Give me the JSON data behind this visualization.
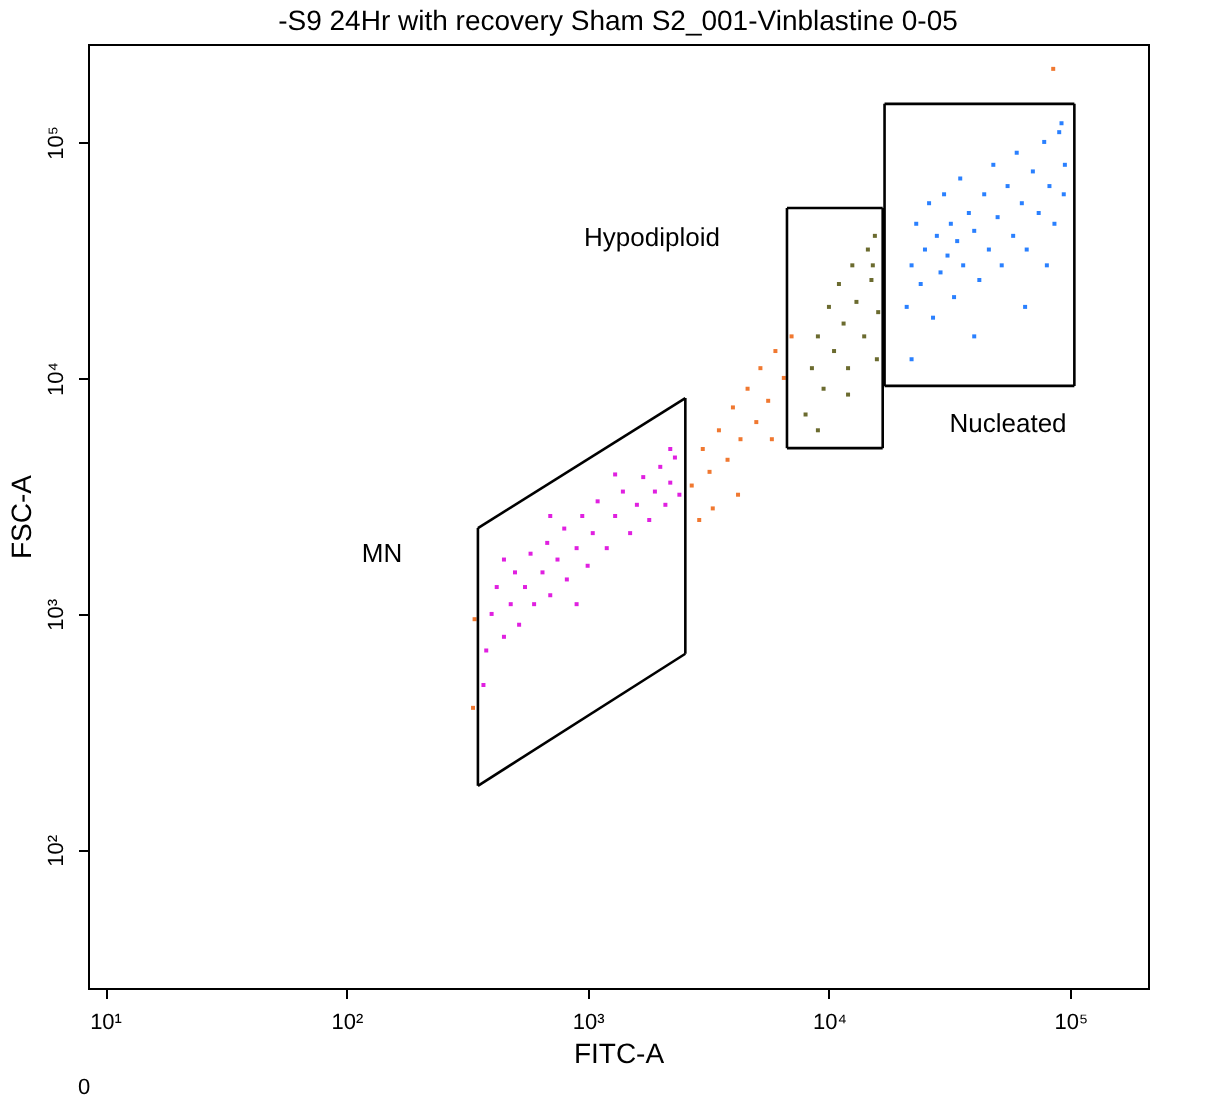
{
  "chart_data": {
    "type": "scatter",
    "title": "-S9 24Hr with recovery Sham S2_001-Vinblastine 0-05",
    "xlabel": "FITC-A",
    "ylabel": "FSC-A",
    "log": "xy",
    "xlim": [
      8.5,
      210000
    ],
    "ylim": [
      26,
      260000
    ],
    "xticks": [
      {
        "value": 10,
        "label": "10¹"
      },
      {
        "value": 100,
        "label": "10²"
      },
      {
        "value": 1000,
        "label": "10³"
      },
      {
        "value": 10000,
        "label": "10⁴"
      },
      {
        "value": 100000,
        "label": "10⁵"
      }
    ],
    "yticks": [
      {
        "value": 100,
        "label": "10²"
      },
      {
        "value": 1000,
        "label": "10³"
      },
      {
        "value": 10000,
        "label": "10⁴"
      },
      {
        "value": 100000,
        "label": "10⁵"
      }
    ],
    "grid": false,
    "marker": "square",
    "annotations": [
      "MN",
      "Hypodiploid",
      "Nucleated",
      "0"
    ],
    "series": [
      {
        "color": "#e020e0",
        "x": [
          380,
          400,
          420,
          450,
          480,
          500,
          520,
          550,
          580,
          600,
          650,
          680,
          700,
          750,
          800,
          820,
          900,
          950,
          1000,
          1050,
          1100,
          1200,
          1300,
          1400,
          1500,
          1600,
          1700,
          1800,
          1900,
          2000,
          2100,
          2200,
          2300,
          2400,
          370,
          450,
          700,
          1300,
          2200,
          900
        ],
        "values": [
          700,
          1000,
          1300,
          800,
          1100,
          1500,
          900,
          1300,
          1800,
          1100,
          1500,
          2000,
          1200,
          1700,
          2300,
          1400,
          1900,
          2600,
          1600,
          2200,
          3000,
          1900,
          2600,
          3300,
          2200,
          2900,
          3800,
          2500,
          3300,
          4200,
          2900,
          3600,
          4600,
          3200,
          500,
          1700,
          2600,
          3900,
          5000,
          1100
        ]
      },
      {
        "color": "#f07830",
        "x": [
          2700,
          3000,
          3200,
          3500,
          3800,
          4000,
          4300,
          4600,
          5000,
          5200,
          5600,
          6000,
          6500,
          7000,
          3300,
          4200,
          5800,
          2900,
          85000,
          340,
          335
        ],
        "values": [
          3500,
          5000,
          4000,
          6000,
          4500,
          7500,
          5500,
          9000,
          6500,
          11000,
          8000,
          13000,
          10000,
          15000,
          2800,
          3200,
          5500,
          2500,
          204000,
          950,
          400
        ]
      },
      {
        "color": "#6b6b2f",
        "x": [
          8000,
          8500,
          9000,
          9500,
          10000,
          10500,
          11000,
          11500,
          12000,
          12500,
          13000,
          14000,
          14500,
          15000,
          16000,
          15500,
          15200,
          9000,
          15800,
          12000
        ],
        "values": [
          7000,
          11000,
          15000,
          9000,
          20000,
          13000,
          25000,
          17000,
          11000,
          30000,
          21000,
          15000,
          35000,
          26000,
          19000,
          40000,
          30000,
          6000,
          12000,
          8500
        ]
      },
      {
        "color": "#2a80ff",
        "x": [
          21000,
          22000,
          23000,
          24000,
          25000,
          26000,
          27000,
          28000,
          29000,
          30000,
          31000,
          32000,
          33000,
          34000,
          35000,
          36000,
          38000,
          40000,
          42000,
          44000,
          46000,
          48000,
          50000,
          52000,
          55000,
          58000,
          60000,
          63000,
          66000,
          70000,
          74000,
          78000,
          82000,
          86000,
          90000,
          95000,
          94000,
          22000,
          40000,
          65000,
          92000,
          80000
        ],
        "values": [
          20000,
          30000,
          45000,
          25000,
          35000,
          55000,
          18000,
          40000,
          28000,
          60000,
          33000,
          45000,
          22000,
          38000,
          70000,
          30000,
          50000,
          42000,
          26000,
          60000,
          35000,
          80000,
          48000,
          30000,
          65000,
          40000,
          90000,
          55000,
          35000,
          75000,
          50000,
          100000,
          65000,
          45000,
          110000,
          80000,
          60000,
          12000,
          15000,
          20000,
          120000,
          30000
        ]
      },
      {
        "type": "line",
        "marker": "none",
        "color": "#000000",
        "x": [
          351,
          2540
        ],
        "values": [
          2310,
          8220
        ]
      },
      {
        "type": "line",
        "marker": "none",
        "color": "#000000",
        "x": [
          2540,
          2540
        ],
        "values": [
          8220,
          678
        ]
      },
      {
        "type": "line",
        "marker": "none",
        "color": "#000000",
        "x": [
          351,
          2540
        ],
        "values": [
          187,
          678
        ]
      },
      {
        "type": "line",
        "marker": "none",
        "color": "#000000",
        "x": [
          351,
          351
        ],
        "values": [
          187,
          2310
        ]
      },
      {
        "type": "line",
        "marker": "none",
        "color": "#000000",
        "x": [
          6700,
          16700
        ],
        "values": [
          52500,
          52500
        ]
      },
      {
        "type": "line",
        "marker": "none",
        "color": "#000000",
        "x": [
          16700,
          16700
        ],
        "values": [
          52500,
          5040
        ]
      },
      {
        "type": "line",
        "marker": "none",
        "color": "#000000",
        "x": [
          6700,
          16700
        ],
        "values": [
          5040,
          5040
        ]
      },
      {
        "type": "line",
        "marker": "none",
        "color": "#000000",
        "x": [
          6700,
          6700
        ],
        "values": [
          5040,
          52500
        ]
      },
      {
        "type": "line",
        "marker": "none",
        "color": "#000000",
        "x": [
          17000,
          104000
        ],
        "values": [
          145000,
          145000
        ]
      },
      {
        "type": "line",
        "marker": "none",
        "color": "#000000",
        "x": [
          104000,
          104000
        ],
        "values": [
          145000,
          9250
        ]
      },
      {
        "type": "line",
        "marker": "none",
        "color": "#000000",
        "x": [
          17000,
          104000
        ],
        "values": [
          9250,
          9250
        ]
      },
      {
        "type": "line",
        "marker": "none",
        "color": "#000000",
        "x": [
          17000,
          17000
        ],
        "values": [
          9250,
          145000
        ]
      }
    ]
  }
}
